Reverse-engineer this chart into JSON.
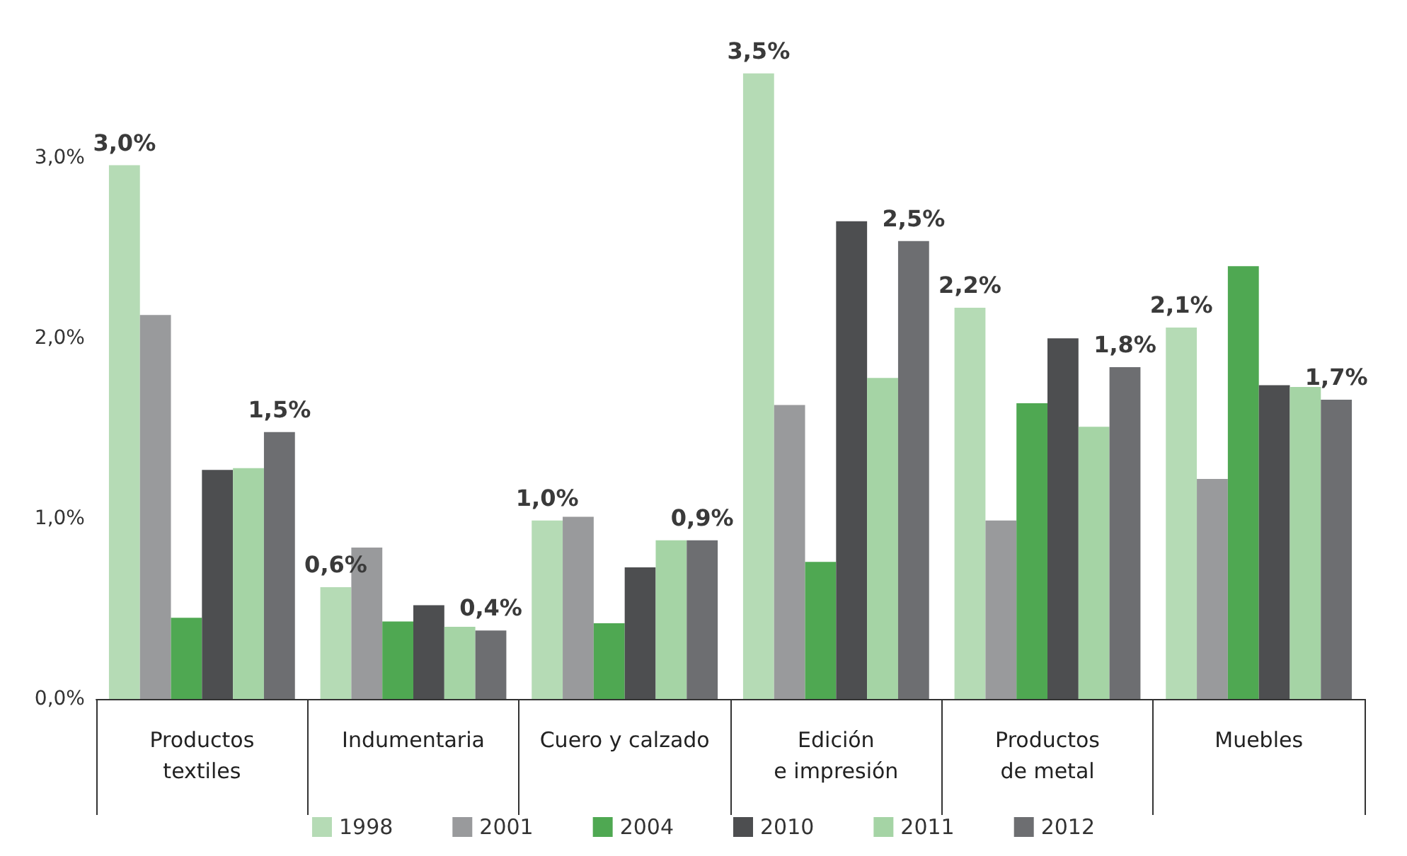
{
  "chart_data": {
    "type": "bar",
    "categories": [
      "Productos\ntextiles",
      "Indumentaria",
      "Cuero y calzado",
      "Edición\ne impresión",
      "Productos\nde metal",
      "Muebles"
    ],
    "series": [
      {
        "name": "1998",
        "color": "#b5dbb5",
        "values": [
          2.96,
          0.62,
          0.99,
          3.47,
          2.17,
          2.06
        ],
        "value_labels": [
          "3,0%",
          "0,6%",
          "1,0%",
          "3,5%",
          "2,2%",
          "2,1%"
        ]
      },
      {
        "name": "2001",
        "color": "#999a9c",
        "values": [
          2.13,
          0.84,
          1.01,
          1.63,
          0.99,
          1.22
        ]
      },
      {
        "name": "2004",
        "color": "#4fa852",
        "values": [
          0.45,
          0.43,
          0.42,
          0.76,
          1.64,
          2.4
        ]
      },
      {
        "name": "2010",
        "color": "#4d4e50",
        "values": [
          1.27,
          0.52,
          0.73,
          2.65,
          2.0,
          1.74
        ]
      },
      {
        "name": "2011",
        "color": "#a5d4a5",
        "values": [
          1.28,
          0.4,
          0.88,
          1.78,
          1.51,
          1.73
        ]
      },
      {
        "name": "2012",
        "color": "#6d6e71",
        "values": [
          1.48,
          0.38,
          0.88,
          2.54,
          1.84,
          1.66
        ],
        "value_labels": [
          "1,5%",
          "0,4%",
          "0,9%",
          "2,5%",
          "1,8%",
          "1,7%"
        ]
      }
    ],
    "ylim": [
      0,
      3.5
    ],
    "yticks": [
      {
        "value": 0,
        "label": "0,0%"
      },
      {
        "value": 1,
        "label": "1,0%"
      },
      {
        "value": 2,
        "label": "2,0%"
      },
      {
        "value": 3,
        "label": "3,0%"
      }
    ],
    "grid": false,
    "legend": "bottom"
  }
}
